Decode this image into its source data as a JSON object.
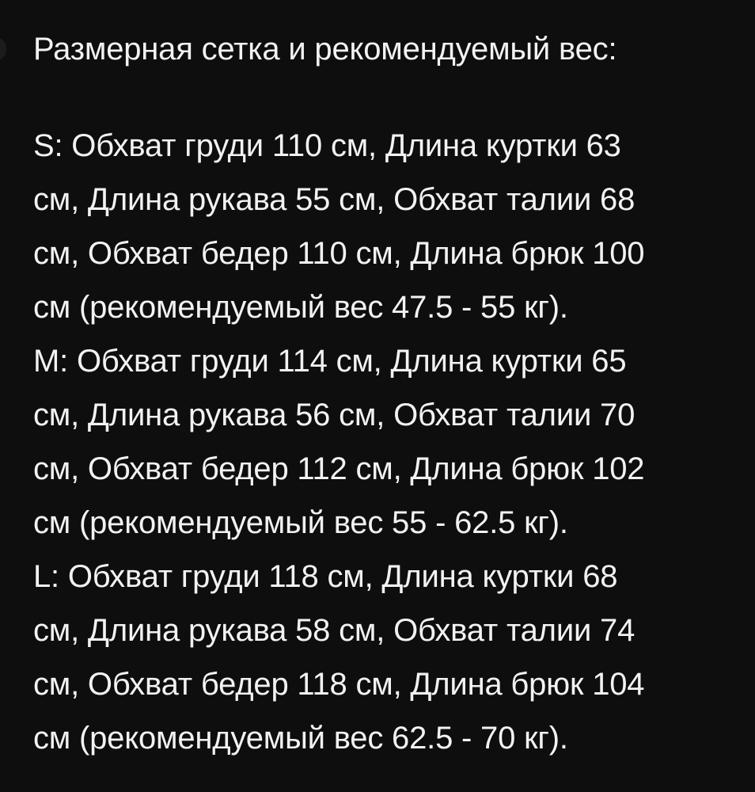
{
  "title": "Размерная сетка и рекомендуемый вес:",
  "lines": [
    "S: Обхват груди 110 см, Длина куртки 63",
    "см, Длина рукава 55 см, Обхват талии 68",
    "см, Обхват бедер 110 см, Длина брюк 100",
    "см (рекомендуемый вес 47.5 - 55 кг).",
    "M: Обхват груди 114 см, Длина куртки 65",
    "см, Длина рукава 56 см, Обхват талии 70",
    "см, Обхват бедер 112 см, Длина брюк 102",
    "см (рекомендуемый вес 55 - 62.5 кг).",
    "L: Обхват груди 118 см, Длина куртки 68",
    "см, Длина рукава 58 см, Обхват талии 74",
    "см, Обхват бедер 118 см, Длина брюк 104",
    "см (рекомендуемый вес 62.5 - 70 кг)."
  ]
}
